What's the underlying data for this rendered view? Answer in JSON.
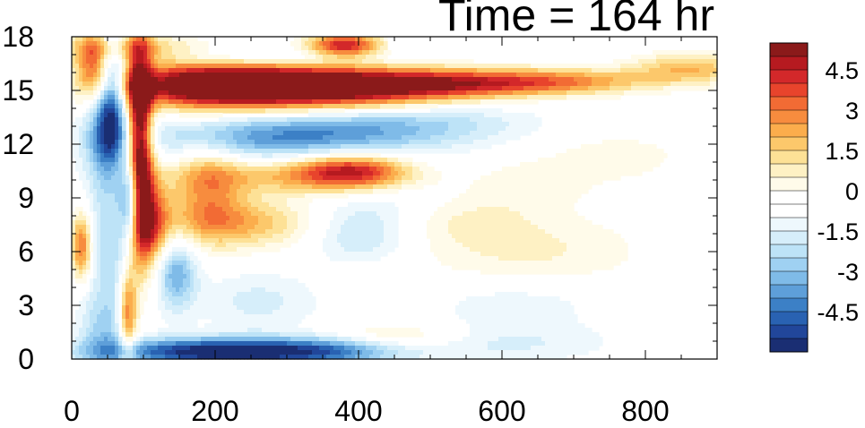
{
  "chart_data": {
    "type": "heatmap",
    "title": "Time = 164 hr",
    "xlabel": "",
    "ylabel": "",
    "xlim": [
      0,
      900
    ],
    "ylim": [
      0,
      18
    ],
    "x_ticks": [
      0,
      200,
      400,
      600,
      800
    ],
    "y_ticks": [
      0,
      3,
      6,
      9,
      12,
      15,
      18
    ],
    "colorbar": {
      "levels": [
        -5.5,
        -5,
        -4.5,
        -4,
        -3.5,
        -3,
        -2.5,
        -2,
        -1.5,
        -1,
        -0.5,
        0,
        0.5,
        1,
        1.5,
        2,
        2.5,
        3,
        3.5,
        4,
        4.5,
        5,
        5.5
      ],
      "labels": [
        "4.5",
        "3",
        "1.5",
        "0",
        "-1.5",
        "-3",
        "-4.5"
      ],
      "label_values": [
        4.5,
        3,
        1.5,
        0,
        -1.5,
        -3,
        -4.5
      ],
      "colors_top_to_bottom": [
        "#8b1a1a",
        "#b61a20",
        "#d3282a",
        "#e8442c",
        "#f26b34",
        "#f78c3e",
        "#fbad4c",
        "#fcc86b",
        "#fde196",
        "#fef1c4",
        "#fffbea",
        "#ffffff",
        "#ffffff",
        "#eef8fd",
        "#d6eefa",
        "#bde3f7",
        "#9fd1f2",
        "#7fbbe8",
        "#5e9fd9",
        "#3c80c6",
        "#2962b2",
        "#21469a",
        "#1a2e73"
      ]
    },
    "features": [
      {
        "x": 35,
        "y": 16.6,
        "sx": 20,
        "sy": 1.2,
        "v": 3.5
      },
      {
        "x": 78,
        "y": 17.3,
        "sx": 60,
        "sy": 0.6,
        "v": 2.5
      },
      {
        "x": 380,
        "y": 17.5,
        "sx": 35,
        "sy": 0.5,
        "v": 5
      },
      {
        "x": 280,
        "y": 16.8,
        "sx": 140,
        "sy": 0.4,
        "v": -1.5
      },
      {
        "x": 55,
        "y": 14.8,
        "sx": 14,
        "sy": 2.6,
        "v": -5
      },
      {
        "x": 95,
        "y": 11.8,
        "sx": 12,
        "sy": 4,
        "v": 7
      },
      {
        "x": 200,
        "y": 15.3,
        "sx": 95,
        "sy": 0.9,
        "v": 7
      },
      {
        "x": 380,
        "y": 15.2,
        "sx": 110,
        "sy": 0.8,
        "v": 6.5
      },
      {
        "x": 560,
        "y": 15.4,
        "sx": 90,
        "sy": 0.55,
        "v": 3.5
      },
      {
        "x": 700,
        "y": 15.5,
        "sx": 80,
        "sy": 0.5,
        "v": 2.5
      },
      {
        "x": 860,
        "y": 16.2,
        "sx": 55,
        "sy": 0.6,
        "v": 2.5
      },
      {
        "x": 300,
        "y": 12.4,
        "sx": 140,
        "sy": 0.9,
        "v": -3.5
      },
      {
        "x": 490,
        "y": 13.3,
        "sx": 110,
        "sy": 0.8,
        "v": -1.5
      },
      {
        "x": 40,
        "y": 12.0,
        "sx": 20,
        "sy": 1.8,
        "v": -2
      },
      {
        "x": 390,
        "y": 10.5,
        "sx": 55,
        "sy": 0.7,
        "v": 4.5
      },
      {
        "x": 300,
        "y": 10.2,
        "sx": 100,
        "sy": 0.7,
        "v": 2
      },
      {
        "x": 190,
        "y": 9.6,
        "sx": 35,
        "sy": 1.8,
        "v": 2.5
      },
      {
        "x": 235,
        "y": 7.6,
        "sx": 80,
        "sy": 1.0,
        "v": 2.5
      },
      {
        "x": 110,
        "y": 7.6,
        "sx": 18,
        "sy": 1.8,
        "v": 4
      },
      {
        "x": 82,
        "y": 9.0,
        "sx": 10,
        "sy": 1.5,
        "v": -4
      },
      {
        "x": 14,
        "y": 6.3,
        "sx": 10,
        "sy": 1.3,
        "v": 4
      },
      {
        "x": 55,
        "y": 6.5,
        "sx": 25,
        "sy": 2.5,
        "v": -2
      },
      {
        "x": 145,
        "y": 4.8,
        "sx": 20,
        "sy": 1.4,
        "v": -3
      },
      {
        "x": 78,
        "y": 2.5,
        "sx": 9,
        "sy": 1.8,
        "v": 4
      },
      {
        "x": 45,
        "y": 1.5,
        "sx": 25,
        "sy": 1.6,
        "v": -2
      },
      {
        "x": 220,
        "y": 0.4,
        "sx": 120,
        "sy": 0.55,
        "v": -6
      },
      {
        "x": 370,
        "y": 0.5,
        "sx": 60,
        "sy": 0.6,
        "v": -1.5
      },
      {
        "x": 260,
        "y": 3.2,
        "sx": 60,
        "sy": 1.2,
        "v": -1.2
      },
      {
        "x": 400,
        "y": 6.8,
        "sx": 50,
        "sy": 1.0,
        "v": -1.6
      },
      {
        "x": 540,
        "y": 7.8,
        "sx": 70,
        "sy": 1.0,
        "v": 0.9
      },
      {
        "x": 640,
        "y": 6.0,
        "sx": 110,
        "sy": 1.5,
        "v": 1.1
      },
      {
        "x": 620,
        "y": 3.2,
        "sx": 90,
        "sy": 1.0,
        "v": -0.9
      },
      {
        "x": 450,
        "y": 1.3,
        "sx": 70,
        "sy": 0.5,
        "v": 1.5
      },
      {
        "x": 600,
        "y": 0.9,
        "sx": 110,
        "sy": 0.8,
        "v": -1.1
      },
      {
        "x": 760,
        "y": 11.3,
        "sx": 70,
        "sy": 1.0,
        "v": 0.8
      },
      {
        "x": 640,
        "y": 9.8,
        "sx": 60,
        "sy": 1.0,
        "v": 0.8
      },
      {
        "x": 420,
        "y": 8.5,
        "sx": 70,
        "sy": 1.0,
        "v": -0.9
      }
    ]
  }
}
